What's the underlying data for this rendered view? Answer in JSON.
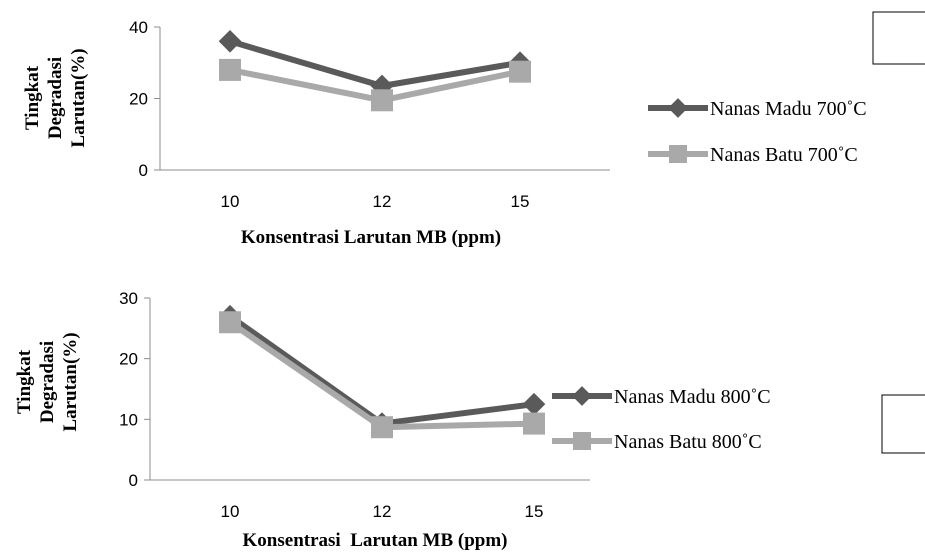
{
  "chart_data": [
    {
      "type": "line",
      "categories": [
        "10",
        "12",
        "15"
      ],
      "xlabel": "Konsentrasi Larutan MB (ppm)",
      "ylabel": [
        "Tingkat",
        "Degradasi",
        "Larutan(%)"
      ],
      "ylim": [
        0,
        40
      ],
      "yticks": [
        "0",
        "20",
        "40"
      ],
      "grid": false,
      "legend": "right",
      "series": [
        {
          "name": "Nanas Madu 700˚C",
          "values": [
            36,
            23.5,
            30
          ],
          "color": "#5a5a5a",
          "marker": "diamond"
        },
        {
          "name": "Nanas Batu 700˚C",
          "values": [
            28,
            19.5,
            27.5
          ],
          "color": "#a9a9a9",
          "marker": "square"
        }
      ]
    },
    {
      "type": "line",
      "categories": [
        "10",
        "12",
        "15"
      ],
      "xlabel": "Konsentrasi  Larutan MB (ppm)",
      "ylabel": [
        "Tingkat",
        "Degradasi",
        "Larutan(%)"
      ],
      "ylim": [
        0,
        30
      ],
      "yticks": [
        "0",
        "10",
        "20",
        "30"
      ],
      "grid": false,
      "legend": "right",
      "series": [
        {
          "name": "Nanas Madu 800˚C",
          "values": [
            27,
            9.3,
            12.5
          ],
          "color": "#5a5a5a",
          "marker": "diamond"
        },
        {
          "name": "Nanas Batu 800˚C",
          "values": [
            26,
            8.7,
            9.3
          ],
          "color": "#a9a9a9",
          "marker": "square"
        }
      ]
    }
  ]
}
